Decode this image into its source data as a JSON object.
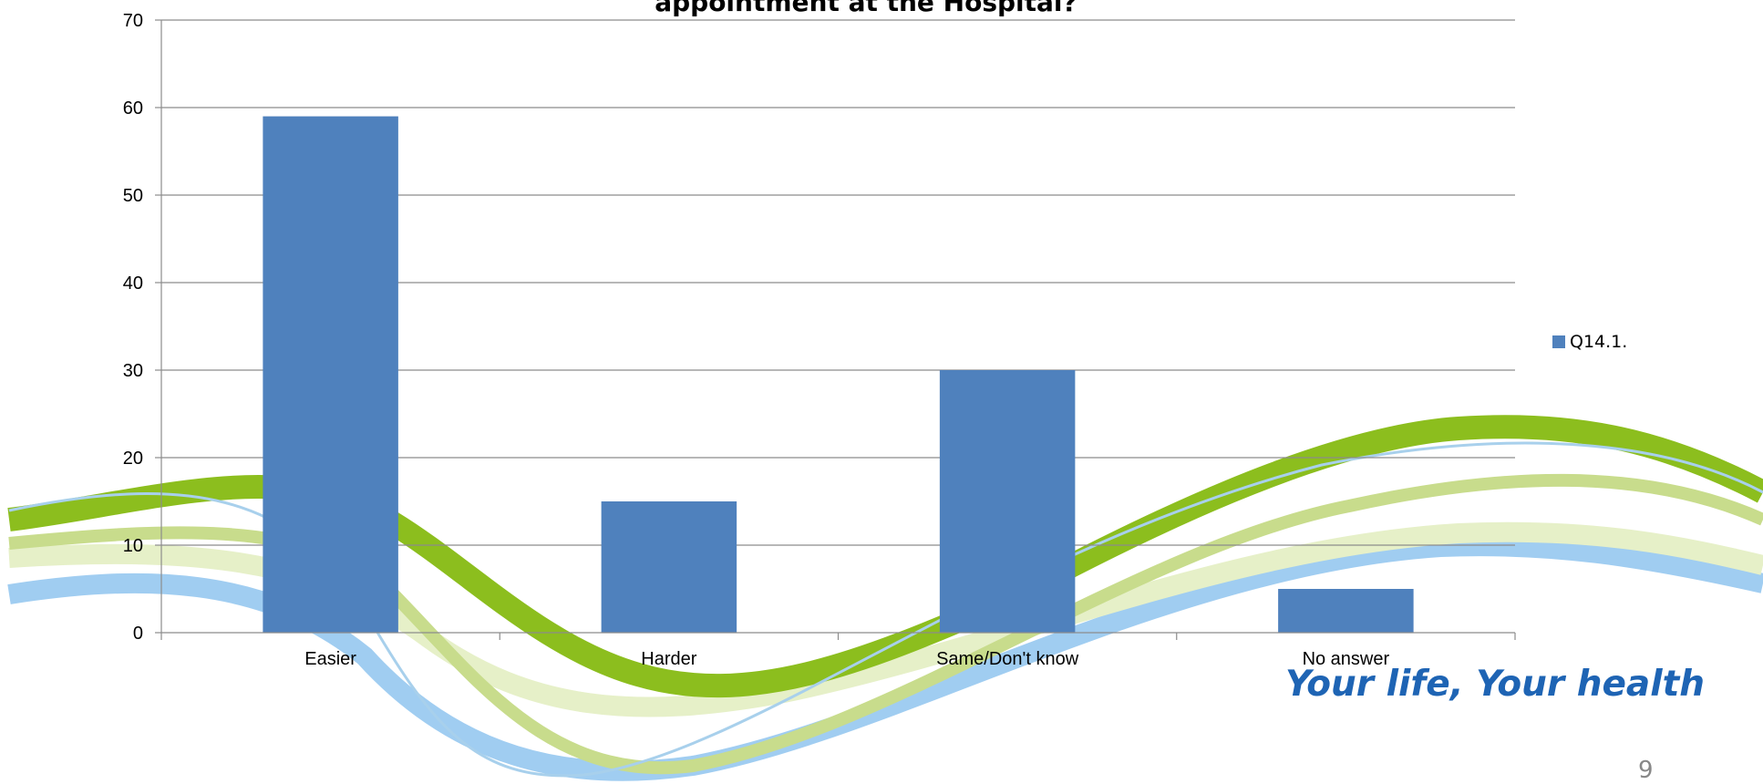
{
  "slide": {
    "title": "appointment at the Hospital?",
    "tagline": "Your life, Your health",
    "page_number": "9"
  },
  "colors": {
    "bar": "#4f81bd",
    "grid": "#8c8c8c",
    "wave_green_dark": "#8cbe1e",
    "wave_green_light": "#c8dc8c",
    "wave_green_pale": "#e6f0c8",
    "wave_blue": "#96c8f0",
    "tagline": "#1e64b4"
  },
  "chart_data": {
    "type": "bar",
    "title": "appointment at the Hospital?",
    "categories": [
      "Easier",
      "Harder",
      "Same/Don't know",
      "No answer"
    ],
    "series": [
      {
        "name": "Q14.1.",
        "values": [
          59,
          15,
          30,
          5
        ]
      }
    ],
    "ylim": [
      0,
      70
    ],
    "yticks": [
      0,
      10,
      20,
      30,
      40,
      50,
      60,
      70
    ],
    "grid": true,
    "legend": "right"
  }
}
